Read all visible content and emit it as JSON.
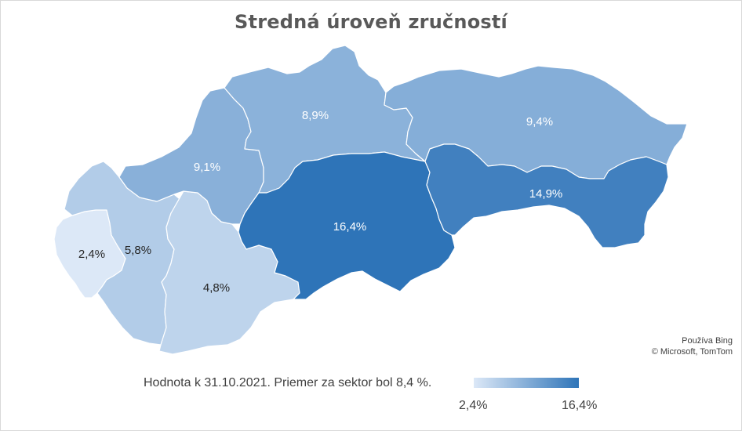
{
  "title": "Stredná úroveň zručností",
  "regions": [
    {
      "id": "ba",
      "value": 2.4,
      "label": "2,4%"
    },
    {
      "id": "tt",
      "value": 5.8,
      "label": "5,8%"
    },
    {
      "id": "nr",
      "value": 4.8,
      "label": "4,8%"
    },
    {
      "id": "tn",
      "value": 9.1,
      "label": "9,1%"
    },
    {
      "id": "za",
      "value": 8.9,
      "label": "8,9%"
    },
    {
      "id": "bb",
      "value": 16.4,
      "label": "16,4%"
    },
    {
      "id": "po",
      "value": 9.4,
      "label": "9,4%"
    },
    {
      "id": "ke",
      "value": 14.9,
      "label": "14,9%"
    }
  ],
  "attribution": {
    "line1": "Používa Bing",
    "line2": "© Microsoft, TomTom"
  },
  "note": "Hodnota k 31.10.2021. Priemer za sektor bol 8,4 %.",
  "legend": {
    "min_label": "2,4%",
    "max_label": "16,4%",
    "min": 2.4,
    "max": 16.4,
    "color_min": "#dce8f7",
    "color_max": "#2e74b8"
  },
  "colors": {
    "title": "#595959",
    "text": "#404040",
    "border": "#ffffff"
  }
}
